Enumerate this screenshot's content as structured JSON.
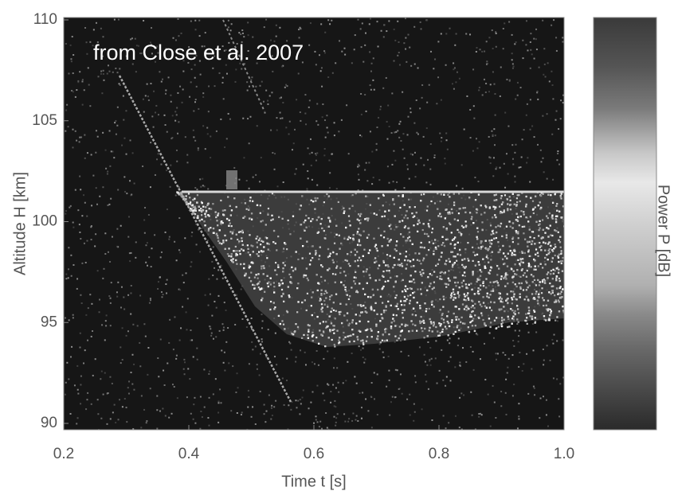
{
  "chart_data": {
    "type": "heatmap",
    "annotation": "from Close et al. 2007",
    "xlabel": "Time t [s]",
    "ylabel": "Altitude H [km]",
    "colorbar_label": "Power P [dB]",
    "xlim": [
      0.2,
      1.0
    ],
    "xticks": [
      0.2,
      0.4,
      0.6,
      0.8,
      {
        "value": 1.0,
        "label": "1.0"
      }
    ],
    "ylim": [
      90,
      110
    ],
    "yticks": [
      90,
      95,
      100,
      105,
      110
    ],
    "grid": false
  }
}
